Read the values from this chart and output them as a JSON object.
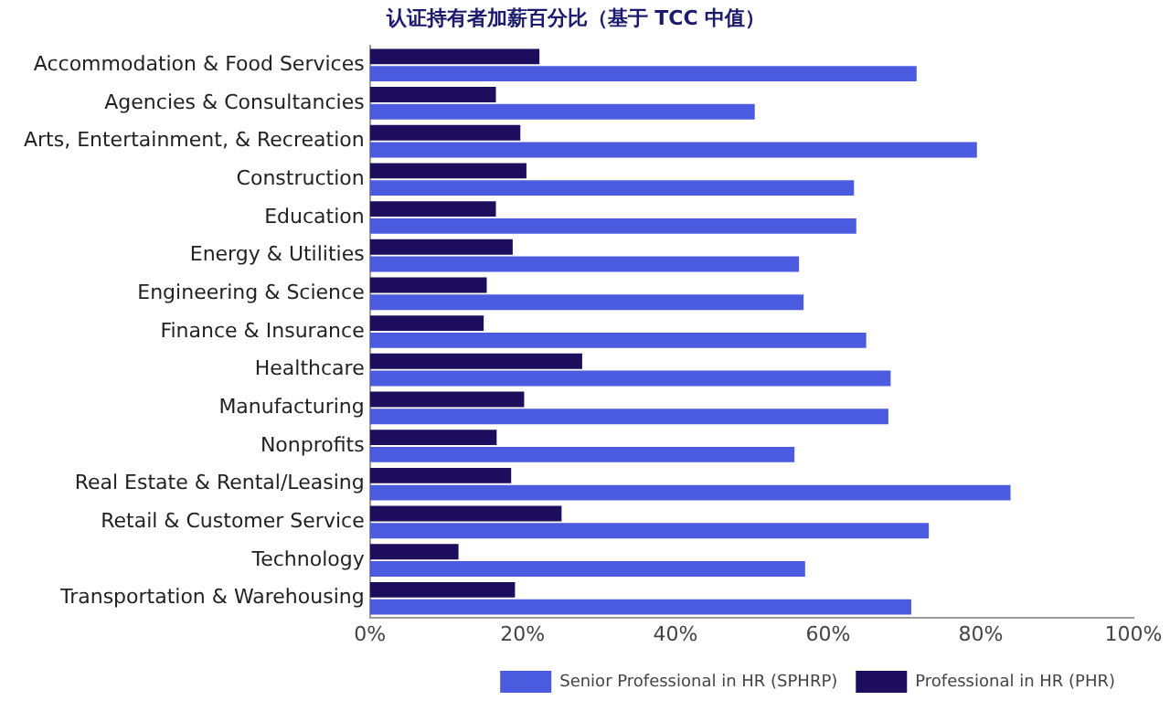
{
  "chart_data": {
    "type": "bar",
    "orientation": "horizontal",
    "title": "认证持有者加薪百分比（基于 TCC 中值）",
    "categories": [
      "Accommodation & Food Services",
      "Agencies & Consultancies",
      "Arts, Entertainment, & Recreation",
      "Construction",
      "Education",
      "Energy & Utilities",
      "Engineering & Science",
      "Finance & Insurance",
      "Healthcare",
      "Manufacturing",
      "Nonprofits",
      "Real Estate & Rental/Leasing",
      "Retail & Customer Service",
      "Technology",
      "Transportation & Warehousing"
    ],
    "series": [
      {
        "name": "Professional in HR (PHR)",
        "color": "#1c0e5c",
        "values": [
          22.2,
          16.5,
          19.7,
          20.5,
          16.5,
          18.7,
          15.3,
          14.9,
          27.8,
          20.2,
          16.6,
          18.5,
          25.1,
          11.6,
          19
        ]
      },
      {
        "name": "Senior Professional in HR (SPHRP)",
        "color": "#4a5be0",
        "values": [
          71.6,
          50.4,
          79.5,
          63.4,
          63.7,
          56.2,
          56.8,
          65,
          68.2,
          67.9,
          55.6,
          83.9,
          73.2,
          57,
          70.9
        ]
      }
    ],
    "xlim": [
      0,
      100
    ],
    "xticks": [
      {
        "value": 0,
        "label": "0%"
      },
      {
        "value": 20,
        "label": "20%"
      },
      {
        "value": 40,
        "label": "40%"
      },
      {
        "value": 60,
        "label": "60%"
      },
      {
        "value": 80,
        "label": "80%"
      },
      {
        "value": 100,
        "label": "100%"
      }
    ],
    "grid": false,
    "legend": "bottom right"
  }
}
